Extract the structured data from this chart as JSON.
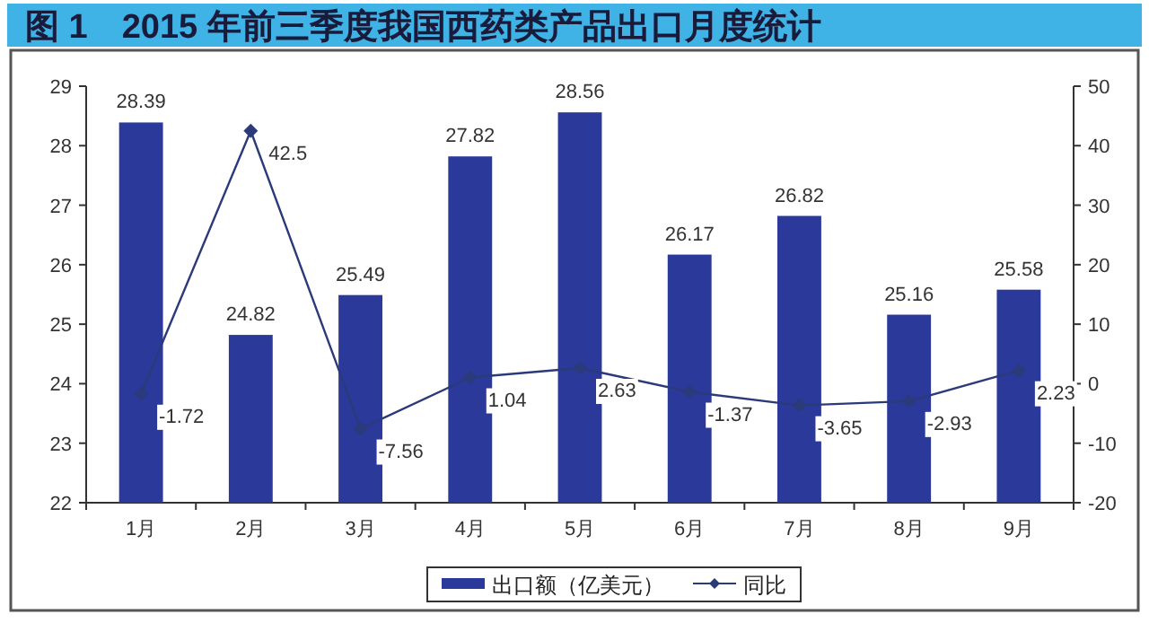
{
  "chart_data": {
    "type": "bar",
    "title": "图 1　2015 年前三季度我国西药类产品出口月度统计",
    "categories": [
      "1月",
      "2月",
      "3月",
      "4月",
      "5月",
      "6月",
      "7月",
      "8月",
      "9月"
    ],
    "series": [
      {
        "name": "出口额（亿美元）",
        "color": "#2b3a9a",
        "values": [
          28.39,
          24.82,
          25.49,
          27.82,
          28.56,
          26.17,
          26.82,
          25.16,
          25.58
        ]
      },
      {
        "name": "同比",
        "type": "line",
        "axis": "y2",
        "color": "#2b3a7a",
        "marker": "diamond",
        "values": [
          -1.72,
          42.5,
          -7.56,
          1.04,
          2.63,
          -1.37,
          -3.65,
          -2.93,
          2.23
        ]
      }
    ],
    "ylim": [
      22,
      29
    ],
    "yticks": [
      22,
      23,
      24,
      25,
      26,
      27,
      28,
      29
    ],
    "y2lim": [
      -20,
      50
    ],
    "y2ticks": [
      -20,
      -10,
      0,
      10,
      20,
      30,
      40,
      50
    ],
    "data_labels": true,
    "legend": "bottom",
    "grid": false
  }
}
